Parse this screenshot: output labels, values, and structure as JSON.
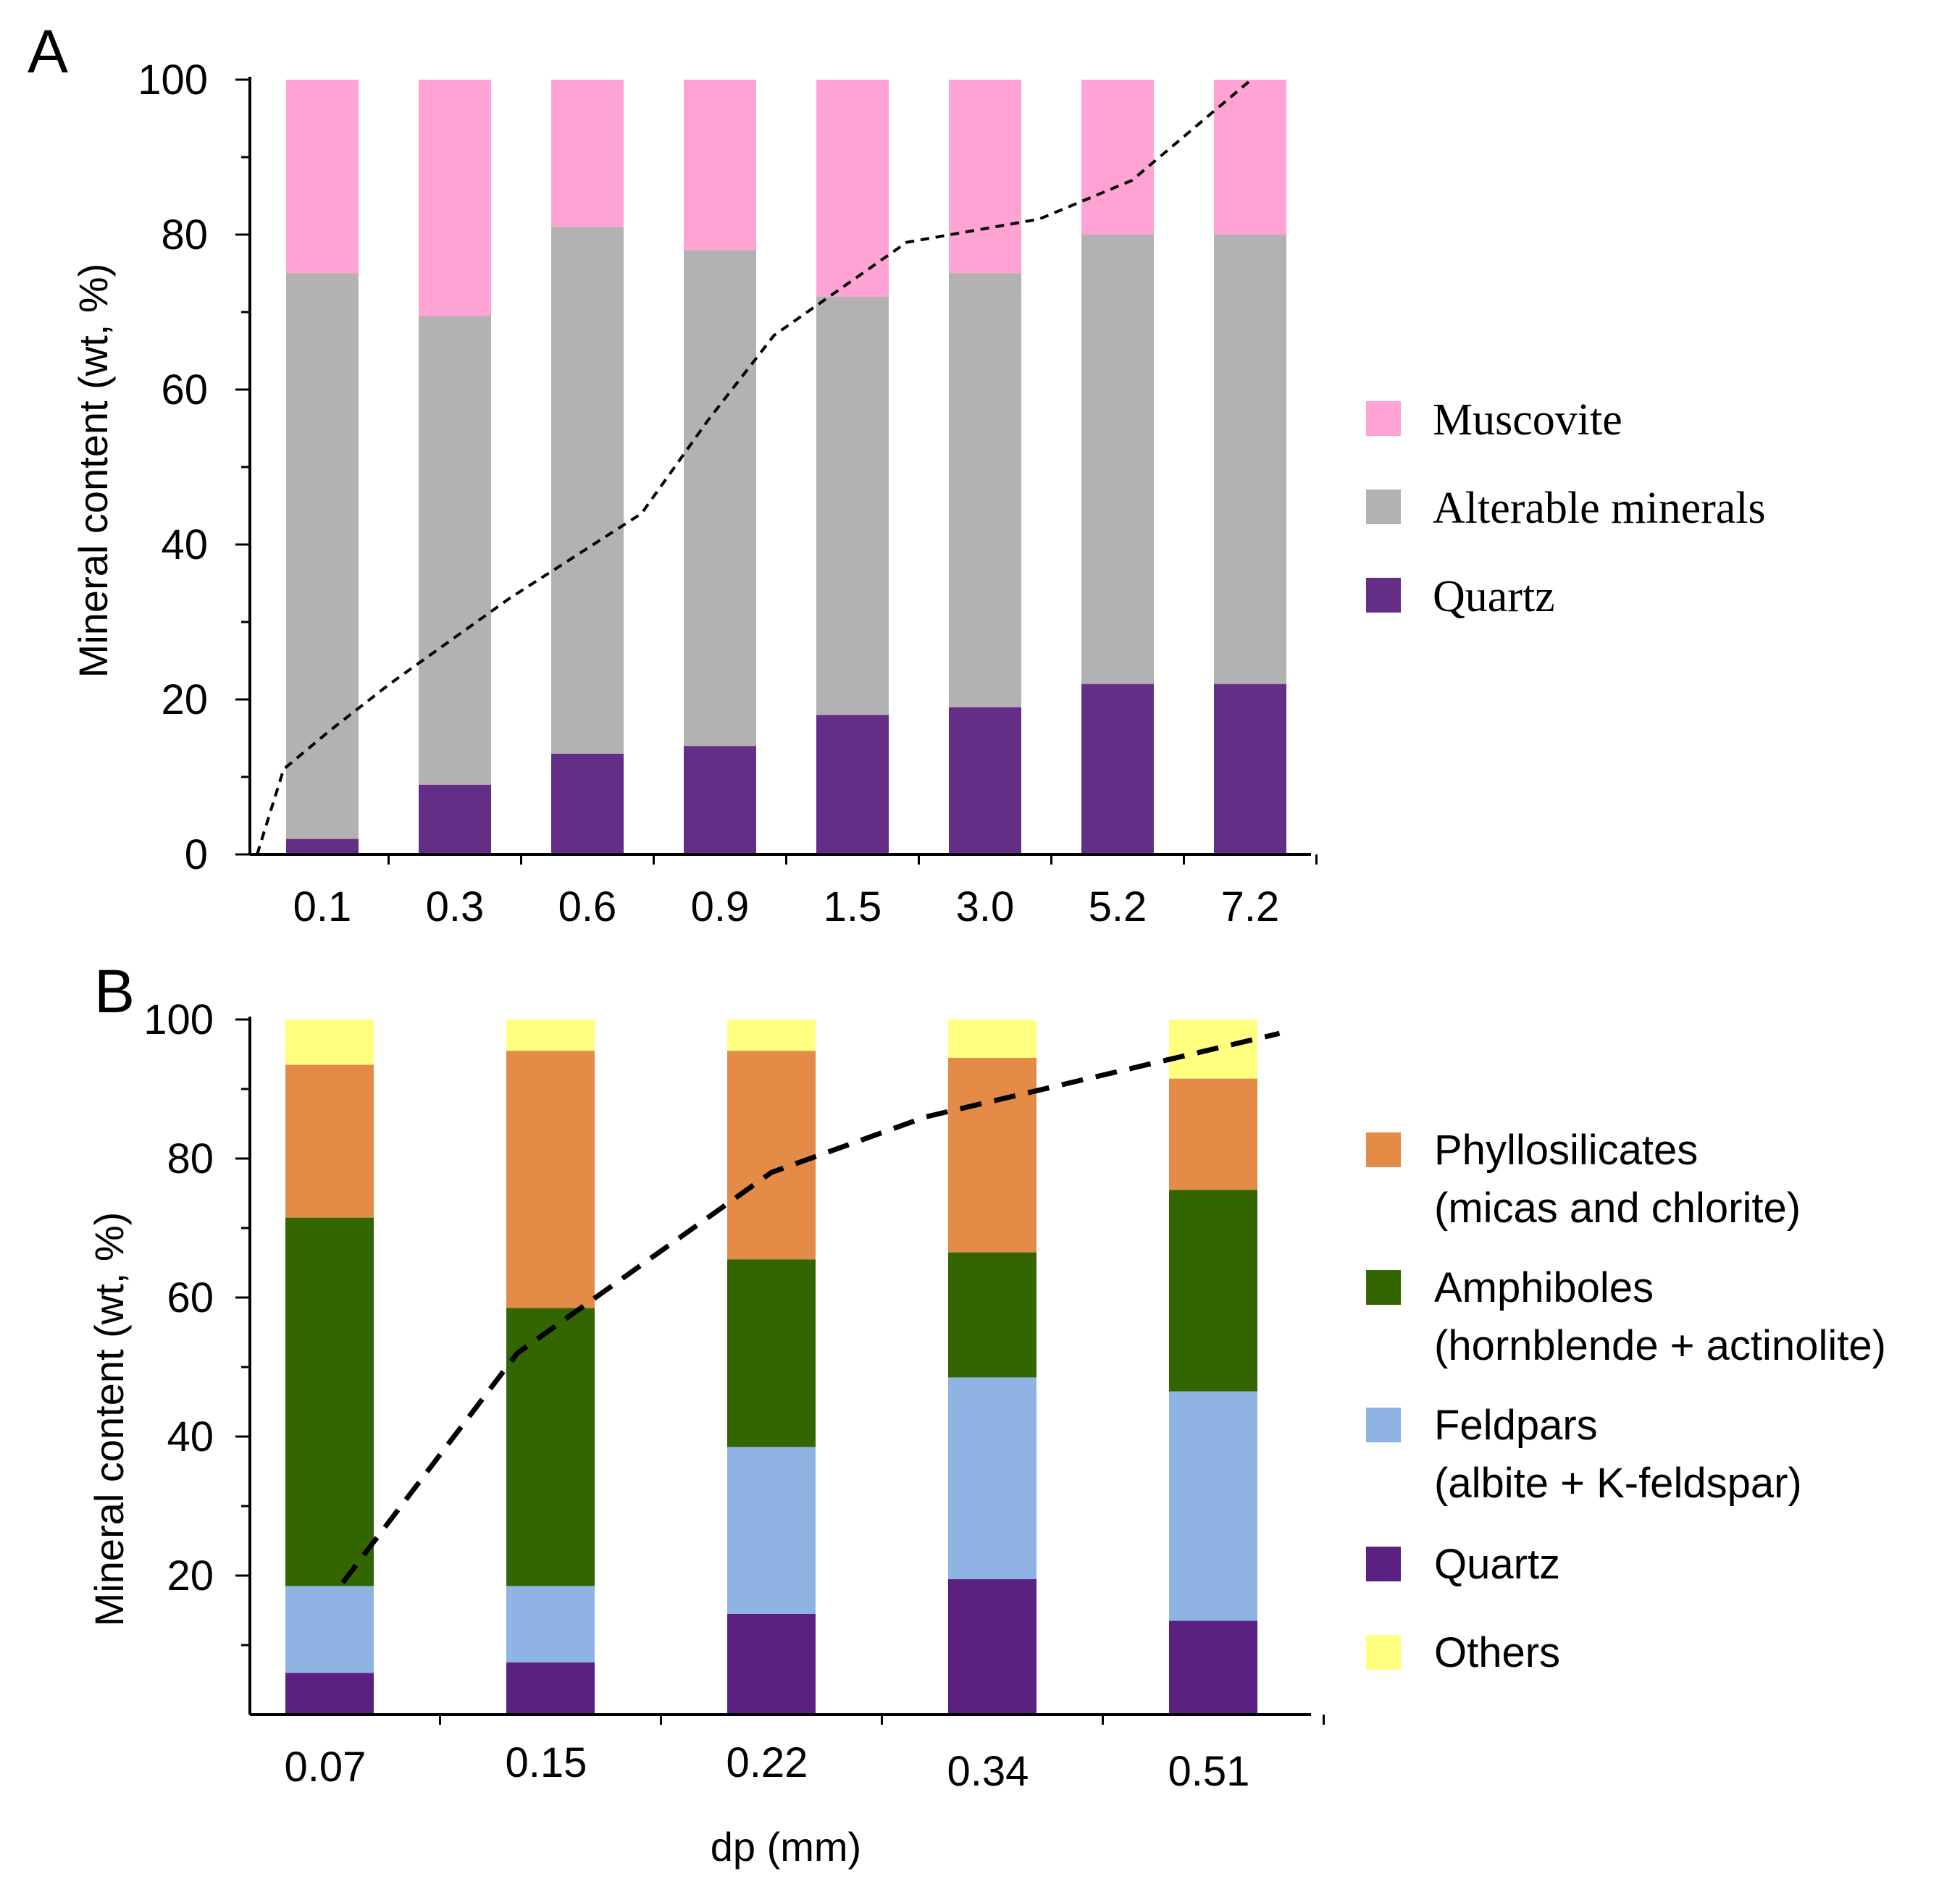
{
  "chart_data": [
    {
      "panel_label": "A",
      "type": "stacked-bar",
      "categories": [
        "0.1",
        "0.3",
        "0.6",
        "0.9",
        "1.5",
        "3.0",
        "5.2",
        "7.2"
      ],
      "ylabel": "Mineral content (wt, %)",
      "xlabel": "",
      "ylim": [
        0,
        100
      ],
      "yticks": [
        "0",
        "20",
        "40",
        "60",
        "80",
        "100"
      ],
      "series": [
        {
          "name": "Quartz",
          "color": "#642d86",
          "values": [
            2,
            9,
            13,
            14,
            18,
            19,
            22,
            22
          ]
        },
        {
          "name": "Alterable minerals",
          "color": "#b2b2b2",
          "values": [
            73,
            60.5,
            68,
            64,
            54,
            56,
            58,
            58
          ]
        },
        {
          "name": "Muscovite",
          "color": "#ffa3d5",
          "values": [
            25,
            30.5,
            19,
            22,
            28,
            25,
            20,
            20
          ]
        }
      ],
      "legend": [
        "Muscovite",
        "Alterable minerals",
        "Quartz"
      ],
      "cumulative_curve": {
        "style": "dashed",
        "x": [
          0.0,
          0.2,
          0.55,
          1.0,
          1.9,
          2.9,
          3.4,
          3.9,
          4.9,
          5.9,
          6.6,
          7.5
        ],
        "y": [
          0,
          11,
          16,
          22,
          33,
          44,
          56,
          67,
          79,
          82,
          87,
          100
        ]
      }
    },
    {
      "panel_label": "B",
      "type": "stacked-bar",
      "categories": [
        "0.07",
        "0.15",
        "0.22",
        "0.34",
        "0.51"
      ],
      "ylabel": "Mineral content (wt, %)",
      "xlabel": "dp (mm)",
      "ylim": [
        0,
        100
      ],
      "yticks": [
        "20",
        "40",
        "60",
        "80",
        "100"
      ],
      "series": [
        {
          "name": "Quartz",
          "color": "#5a2183",
          "values": [
            6,
            7.5,
            14.5,
            19.5,
            13.5
          ]
        },
        {
          "name": "Feldpars",
          "color": "#8fb4e3",
          "values": [
            12.5,
            11,
            24,
            29,
            33
          ]
        },
        {
          "name": "Amphiboles",
          "color": "#336600",
          "values": [
            53,
            40,
            27,
            18,
            29
          ]
        },
        {
          "name": "Phyllosilicates",
          "color": "#e48b48",
          "values": [
            22,
            37,
            30,
            28,
            16
          ]
        },
        {
          "name": "Others",
          "color": "#ffff80",
          "values": [
            6.5,
            4.5,
            4.5,
            5.5,
            8.5
          ]
        }
      ],
      "legend": [
        {
          "name": "Phyllosilicates",
          "detail": "(micas and chlorite)"
        },
        {
          "name": "Amphiboles",
          "detail": "(hornblende + actinolite)"
        },
        {
          "name": "Feldpars",
          "detail": "(albite + K-feldspar)"
        },
        {
          "name": "Quartz",
          "detail": ""
        },
        {
          "name": "Others",
          "detail": ""
        }
      ],
      "cumulative_curve": {
        "style": "dashed",
        "x": [
          0.06,
          0.85,
          2.0,
          2.7,
          4.3
        ],
        "y": [
          19,
          52,
          78,
          86,
          98
        ]
      }
    }
  ]
}
